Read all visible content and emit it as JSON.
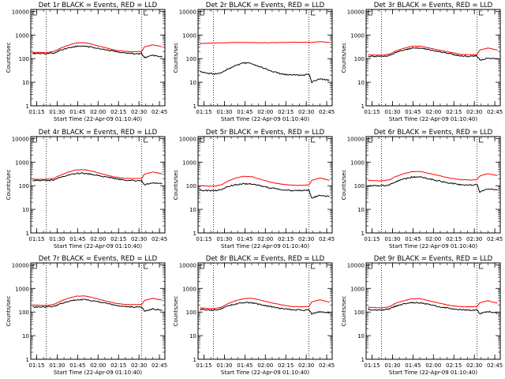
{
  "chart_data": {
    "type": "line",
    "panels": [
      {
        "title": "Det 1r  BLACK = Events, RED = LLD",
        "series": [
          {
            "color": "#000000",
            "values": [
              165,
              165,
              165,
              165,
              175,
              220,
              280,
              330,
              335,
              300,
              245,
              200,
              170,
              160,
              162,
              110,
              135,
              120
            ]
          },
          {
            "color": "#ff0000",
            "values": [
              185,
              182,
              180,
              185,
              205,
              270,
              370,
              460,
              470,
              400,
              300,
              230,
              200,
              195,
              200,
              310,
              380,
              320
            ]
          }
        ]
      },
      {
        "title": "Det 2r  BLACK = Events, RED = LLD",
        "series": [
          {
            "color": "#000000",
            "values": [
              28,
              25,
              23,
              22,
              25,
              35,
              50,
              65,
              62,
              45,
              30,
              22,
              20,
              20,
              22,
              10,
              14,
              12
            ]
          },
          {
            "color": "#ff0000",
            "values": [
              430,
              440,
              450,
              455,
              460,
              470,
              480,
              480,
              475,
              470,
              470,
              480,
              490,
              490,
              490,
              480,
              520,
              480
            ]
          }
        ]
      },
      {
        "title": "Det 3r  BLACK = Events, RED = LLD",
        "series": [
          {
            "color": "#000000",
            "values": [
              125,
              125,
              125,
              125,
              135,
              175,
              230,
              275,
              280,
              245,
              195,
              160,
              130,
              125,
              130,
              85,
              105,
              95
            ]
          },
          {
            "color": "#ff0000",
            "values": [
              145,
              142,
              140,
              142,
              155,
              205,
              270,
              330,
              340,
              290,
              230,
              185,
              150,
              145,
              150,
              230,
              280,
              230
            ]
          }
        ]
      },
      {
        "title": "Det 4r  BLACK = Events, RED = LLD",
        "series": [
          {
            "color": "#000000",
            "values": [
              165,
              165,
              165,
              165,
              175,
              220,
              280,
              330,
              335,
              300,
              245,
              200,
              170,
              160,
              162,
              110,
              135,
              120
            ]
          },
          {
            "color": "#ff0000",
            "values": [
              190,
              187,
              185,
              190,
              210,
              275,
              375,
              465,
              475,
              405,
              305,
              235,
              205,
              200,
              205,
              310,
              380,
              320
            ]
          }
        ]
      },
      {
        "title": "Det 5r  BLACK = Events, RED = LLD",
        "series": [
          {
            "color": "#000000",
            "values": [
              65,
              63,
              62,
              63,
              72,
              90,
              110,
              120,
              118,
              100,
              80,
              68,
              62,
              62,
              65,
              30,
              40,
              35
            ]
          },
          {
            "color": "#ff0000",
            "values": [
              100,
              98,
              95,
              98,
              110,
              150,
              210,
              250,
              240,
              190,
              140,
              115,
              105,
              105,
              110,
              170,
              210,
              170
            ]
          }
        ]
      },
      {
        "title": "Det 6r  BLACK = Events, RED = LLD",
        "series": [
          {
            "color": "#000000",
            "values": [
              100,
              100,
              100,
              100,
              110,
              145,
              190,
              230,
              235,
              200,
              160,
              130,
              110,
              105,
              110,
              55,
              75,
              65
            ]
          },
          {
            "color": "#ff0000",
            "values": [
              170,
              165,
              160,
              165,
              180,
              240,
              320,
              390,
              400,
              340,
              270,
              210,
              180,
              175,
              180,
              260,
              320,
              270
            ]
          }
        ]
      },
      {
        "title": "Det 7r  BLACK = Events, RED = LLD",
        "series": [
          {
            "color": "#000000",
            "values": [
              165,
              165,
              165,
              165,
              175,
              220,
              280,
              330,
              335,
              300,
              245,
              200,
              170,
              160,
              162,
              110,
              135,
              120
            ]
          },
          {
            "color": "#ff0000",
            "values": [
              200,
              195,
              190,
              195,
              215,
              280,
              380,
              470,
              480,
              410,
              310,
              240,
              210,
              205,
              210,
              310,
              380,
              320
            ]
          }
        ]
      },
      {
        "title": "Det 8r  BLACK = Events, RED = LLD",
        "series": [
          {
            "color": "#000000",
            "values": [
              130,
              125,
              120,
              125,
              140,
              175,
              220,
              250,
              245,
              210,
              170,
              140,
              125,
              120,
              125,
              85,
              105,
              90
            ]
          },
          {
            "color": "#ff0000",
            "values": [
              150,
              145,
              140,
              145,
              160,
              220,
              300,
              370,
              380,
              320,
              250,
              200,
              170,
              165,
              170,
              270,
              330,
              260
            ]
          }
        ]
      },
      {
        "title": "Det 9r  BLACK = Events, RED = LLD",
        "series": [
          {
            "color": "#000000",
            "values": [
              130,
              125,
              120,
              125,
              140,
              175,
              220,
              250,
              245,
              210,
              170,
              140,
              125,
              120,
              125,
              85,
              105,
              90
            ]
          },
          {
            "color": "#ff0000",
            "values": [
              160,
              155,
              150,
              155,
              170,
              230,
              300,
              360,
              370,
              310,
              240,
              190,
              170,
              165,
              170,
              250,
              300,
              240
            ]
          }
        ]
      }
    ],
    "x_times": [
      "01:12",
      "01:16",
      "01:20",
      "01:24",
      "01:28",
      "01:32",
      "01:38",
      "01:44",
      "01:50",
      "01:56",
      "02:04",
      "02:12",
      "02:20",
      "02:28",
      "02:32",
      "02:34",
      "02:40",
      "02:47"
    ],
    "xlim": [
      "01:10:40",
      "02:49:00"
    ],
    "xticks": [
      "01:15",
      "01:30",
      "01:45",
      "02:00",
      "02:15",
      "02:30",
      "02:45"
    ],
    "ylim": [
      1,
      12000
    ],
    "yscale": "log",
    "yticks": [
      "1",
      "10",
      "100",
      "1000",
      "10000"
    ],
    "ylabel": "Counts/sec",
    "xlabel": "Start Time (22-Apr-09 01:10:40)",
    "marker_lines": [
      "01:22",
      "02:32"
    ]
  }
}
